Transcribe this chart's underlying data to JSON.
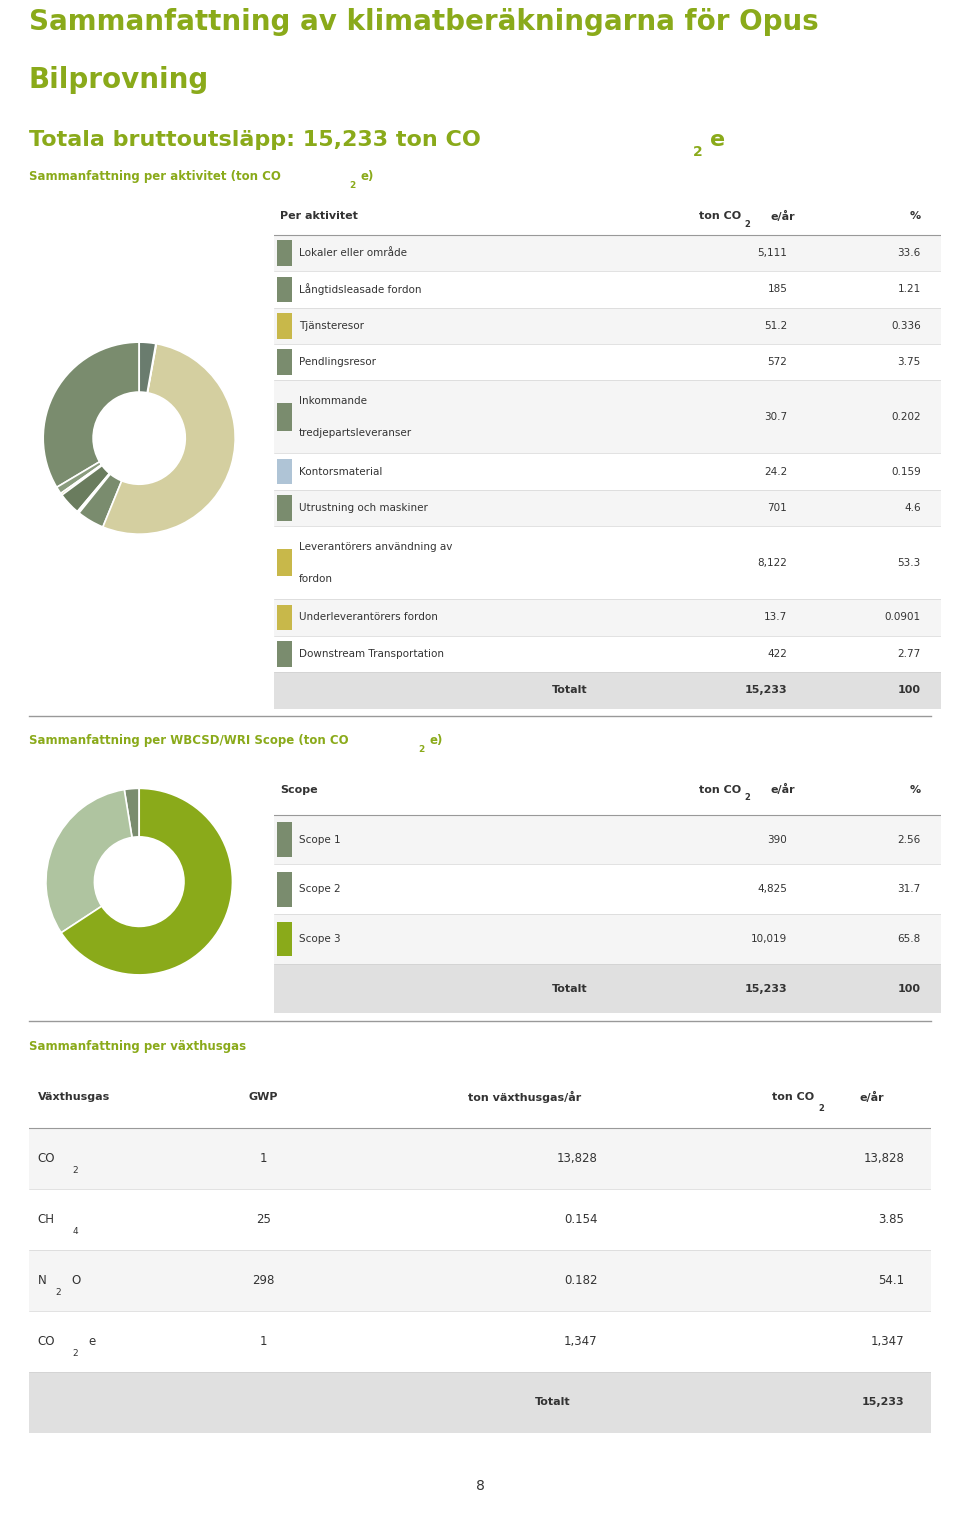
{
  "title_color": "#8aaa1a",
  "header_color": "#8aaa1a",
  "activity_rows": [
    {
      "label": "Lokaler eller område",
      "value": "5,111",
      "pct": "33.6",
      "color": "#7a8c6e",
      "multiline": false
    },
    {
      "label": "Långtidsleasade fordon",
      "value": "185",
      "pct": "1.21",
      "color": "#7a8c6e",
      "multiline": false
    },
    {
      "label": "Tjänsteresor",
      "value": "51.2",
      "pct": "0.336",
      "color": "#c8b84a",
      "multiline": false
    },
    {
      "label": "Pendlingsresor",
      "value": "572",
      "pct": "3.75",
      "color": "#7a8c6e",
      "multiline": false
    },
    {
      "label": "Inkommande tredjepartsleveranser",
      "value": "30.7",
      "pct": "0.202",
      "color": "#7a8c6e",
      "multiline": true
    },
    {
      "label": "Kontorsmaterial",
      "value": "24.2",
      "pct": "0.159",
      "color": "#afc4d6",
      "multiline": false
    },
    {
      "label": "Utrustning och maskiner",
      "value": "701",
      "pct": "4.6",
      "color": "#7a8c6e",
      "multiline": false
    },
    {
      "label": "Leverantörers användning av fordon",
      "value": "8,122",
      "pct": "53.3",
      "color": "#c8b84a",
      "multiline": true
    },
    {
      "label": "Underleverantörers fordon",
      "value": "13.7",
      "pct": "0.0901",
      "color": "#c8b84a",
      "multiline": false
    },
    {
      "label": "Downstream Transportation",
      "value": "422",
      "pct": "2.77",
      "color": "#7a8c6e",
      "multiline": false
    }
  ],
  "pie1_values": [
    5111,
    185,
    51.2,
    572,
    30.7,
    24.2,
    701,
    8122,
    13.7,
    422
  ],
  "pie1_colors": [
    "#7a8c6e",
    "#8a9c7e",
    "#c8b84a",
    "#6a7c5e",
    "#8a9c7e",
    "#afc4d6",
    "#7a8c6e",
    "#d4cfa0",
    "#c8b84a",
    "#6a7c6e"
  ],
  "scope_rows": [
    {
      "label": "Scope 1",
      "value": "390",
      "pct": "2.56",
      "color": "#7a8c6e"
    },
    {
      "label": "Scope 2",
      "value": "4,825",
      "pct": "31.7",
      "color": "#7a8c6e"
    },
    {
      "label": "Scope 3",
      "value": "10,019",
      "pct": "65.8",
      "color": "#8aaa1a"
    }
  ],
  "pie2_values": [
    390,
    4825,
    10019
  ],
  "pie2_colors": [
    "#7a8c6e",
    "#afc4a0",
    "#8aaa1a"
  ],
  "gwp_rows": [
    {
      "gas": "CO",
      "sub": "2",
      "extra": "",
      "gwp": "1",
      "ton_gwp": "13,828",
      "ton_co2": "13,828"
    },
    {
      "gas": "CH",
      "sub": "4",
      "extra": "",
      "gwp": "25",
      "ton_gwp": "0.154",
      "ton_co2": "3.85"
    },
    {
      "gas": "N",
      "sub": "2",
      "extra": "O",
      "gwp": "298",
      "ton_gwp": "0.182",
      "ton_co2": "54.1"
    },
    {
      "gas": "CO",
      "sub": "2",
      "extra": "e",
      "gwp": "1",
      "ton_gwp": "1,347",
      "ton_co2": "1,347"
    }
  ],
  "bg_color": "#ffffff",
  "text_color": "#333333",
  "row_bg_alt": "#f5f5f5",
  "row_bg_white": "#ffffff",
  "total_bg": "#e0e0e0"
}
